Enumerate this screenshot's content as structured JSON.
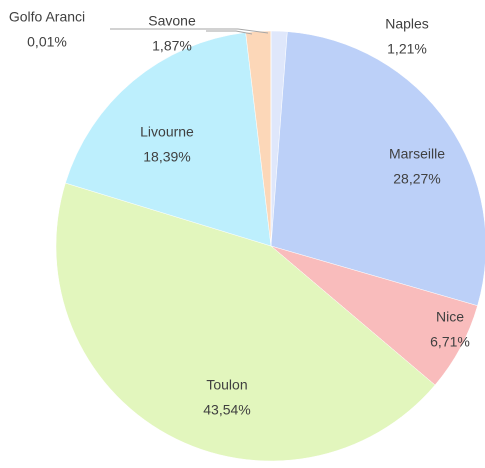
{
  "chart_data": {
    "type": "pie",
    "categories": [
      "Naples",
      "Marseille",
      "Nice",
      "Toulon",
      "Livourne",
      "Savone",
      "Golfo Aranci"
    ],
    "values": [
      1.21,
      28.27,
      6.71,
      43.54,
      18.39,
      1.87,
      0.01
    ],
    "value_labels": [
      "1,21%",
      "28,27%",
      "6,71%",
      "43,54%",
      "18,39%",
      "1,87%",
      "0,01%"
    ],
    "colors": [
      "#dfe7fb",
      "#bcd0f8",
      "#f9bcbc",
      "#e2f6bd",
      "#bdeffd",
      "#fcd7b8",
      "#bfbfbf"
    ]
  }
}
